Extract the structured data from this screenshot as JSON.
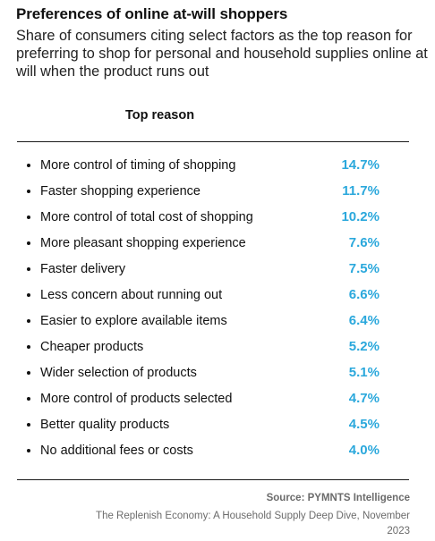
{
  "title": "Preferences of online at-will shoppers",
  "subtitle": "Share of consumers citing select factors as the top reason for preferring to shop for personal and household supplies online at will when the product runs out",
  "column_header": "Top reason",
  "source": "Source: PYMNTS Intelligence",
  "citation": "The Replenish Economy: A Household Supply Deep Dive, November 2023",
  "colors": {
    "value_accent": "#2ba8dc",
    "text": "#111111",
    "muted": "#6b6b6b"
  },
  "chart_data": {
    "type": "table",
    "column_header": "Top reason",
    "categories": [
      "More control of timing of shopping",
      "Faster shopping experience",
      "More control of total cost of shopping",
      "More pleasant shopping experience",
      "Faster delivery",
      "Less concern about running out",
      "Easier to explore available items",
      "Cheaper products",
      "Wider selection of products",
      "More control of products selected",
      "Better quality products",
      "No additional fees or costs"
    ],
    "values": [
      14.7,
      11.7,
      10.2,
      7.6,
      7.5,
      6.6,
      6.4,
      5.2,
      5.1,
      4.7,
      4.5,
      4.0
    ],
    "value_labels": [
      "14.7%",
      "11.7%",
      "10.2%",
      "7.6%",
      "7.5%",
      "6.6%",
      "6.4%",
      "5.2%",
      "5.1%",
      "4.7%",
      "4.5%",
      "4.0%"
    ],
    "unit": "%"
  }
}
